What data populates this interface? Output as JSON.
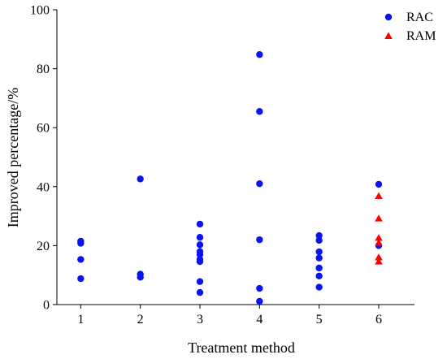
{
  "chart_data": {
    "type": "scatter",
    "xlabel": "Treatment method",
    "ylabel": "Improved percentage/%",
    "xlim": [
      0.6,
      6.6
    ],
    "ylim": [
      0,
      100
    ],
    "x_ticks": [
      1,
      2,
      3,
      4,
      5,
      6
    ],
    "y_ticks": [
      0,
      20,
      40,
      60,
      80,
      100
    ],
    "grid": false,
    "legend_position": "top-right",
    "series": [
      {
        "name": "RAC",
        "marker": "circle",
        "color": "#0a14f0",
        "points": [
          {
            "x": 1,
            "y": 21.5
          },
          {
            "x": 1,
            "y": 20.8
          },
          {
            "x": 1,
            "y": 15.3
          },
          {
            "x": 1,
            "y": 8.8
          },
          {
            "x": 2,
            "y": 42.6
          },
          {
            "x": 2,
            "y": 10.3
          },
          {
            "x": 2,
            "y": 9.3
          },
          {
            "x": 3,
            "y": 27.3
          },
          {
            "x": 3,
            "y": 22.8
          },
          {
            "x": 3,
            "y": 20.3
          },
          {
            "x": 3,
            "y": 18.0
          },
          {
            "x": 3,
            "y": 17.0
          },
          {
            "x": 3,
            "y": 15.3
          },
          {
            "x": 3,
            "y": 14.6
          },
          {
            "x": 3,
            "y": 7.8
          },
          {
            "x": 3,
            "y": 4.1
          },
          {
            "x": 4,
            "y": 84.8
          },
          {
            "x": 4,
            "y": 65.5
          },
          {
            "x": 4,
            "y": 41.0
          },
          {
            "x": 4,
            "y": 22.0
          },
          {
            "x": 4,
            "y": 5.5
          },
          {
            "x": 4,
            "y": 1.1
          },
          {
            "x": 5,
            "y": 23.4
          },
          {
            "x": 5,
            "y": 21.8
          },
          {
            "x": 5,
            "y": 17.9
          },
          {
            "x": 5,
            "y": 15.8
          },
          {
            "x": 5,
            "y": 12.4
          },
          {
            "x": 5,
            "y": 9.7
          },
          {
            "x": 5,
            "y": 5.9
          },
          {
            "x": 6,
            "y": 40.8
          },
          {
            "x": 6,
            "y": 20.0
          }
        ]
      },
      {
        "name": "RAM",
        "marker": "triangle",
        "color": "#ff0000",
        "points": [
          {
            "x": 6,
            "y": 36.8
          },
          {
            "x": 6,
            "y": 29.2
          },
          {
            "x": 6,
            "y": 22.6
          },
          {
            "x": 6,
            "y": 21.0
          },
          {
            "x": 6,
            "y": 16.0
          },
          {
            "x": 6,
            "y": 14.6
          }
        ]
      }
    ]
  }
}
